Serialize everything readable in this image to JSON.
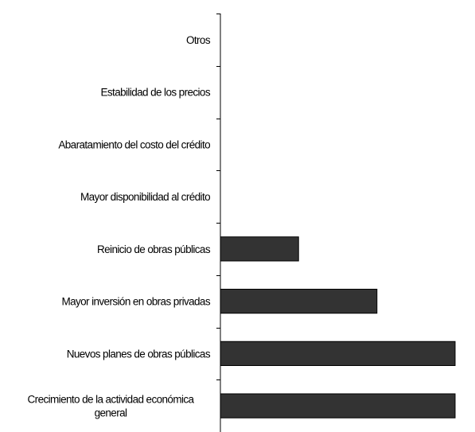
{
  "chart_data": {
    "type": "bar",
    "orientation": "horizontal",
    "title": "",
    "xlabel": "",
    "ylabel": "",
    "categories": [
      "Otros",
      "Estabilidad de los precios",
      "Abaratamiento del costo del crédito",
      "Mayor disponibilidad al crédito",
      "Reinicio de obras públicas",
      "Mayor inversión en obras privadas",
      "Nuevos planes de obras públicas",
      "Crecimiento de la actividad económica general"
    ],
    "values": [
      0,
      0,
      0,
      0,
      33.3,
      66.7,
      100,
      100
    ],
    "xlim": [
      0,
      100
    ],
    "grid": false,
    "legend": "none",
    "bar_color": "#333333",
    "bar_edge_color": "#000000",
    "axis_color": "#000000"
  }
}
